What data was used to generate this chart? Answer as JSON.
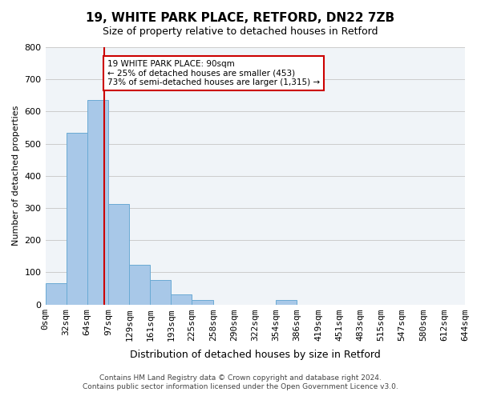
{
  "title": "19, WHITE PARK PLACE, RETFORD, DN22 7ZB",
  "subtitle": "Size of property relative to detached houses in Retford",
  "xlabel": "Distribution of detached houses by size in Retford",
  "ylabel": "Number of detached properties",
  "bar_edges": [
    0,
    32,
    64,
    97,
    129,
    161,
    193,
    225,
    258,
    290,
    322,
    354,
    386,
    419,
    451,
    483,
    515,
    547,
    580,
    612,
    644
  ],
  "bar_heights": [
    65,
    535,
    635,
    313,
    122,
    77,
    32,
    13,
    0,
    0,
    0,
    13,
    0,
    0,
    0,
    0,
    0,
    0,
    0,
    0
  ],
  "bar_color": "#a8c8e8",
  "bar_edge_color": "#6aaad4",
  "property_value": 90,
  "vline_color": "#cc0000",
  "ylim": [
    0,
    800
  ],
  "yticks": [
    0,
    100,
    200,
    300,
    400,
    500,
    600,
    700,
    800
  ],
  "tick_labels": [
    "0sqm",
    "32sqm",
    "64sqm",
    "97sqm",
    "129sqm",
    "161sqm",
    "193sqm",
    "225sqm",
    "258sqm",
    "290sqm",
    "322sqm",
    "354sqm",
    "386sqm",
    "419sqm",
    "451sqm",
    "483sqm",
    "515sqm",
    "547sqm",
    "580sqm",
    "612sqm",
    "644sqm"
  ],
  "annotation_text": "19 WHITE PARK PLACE: 90sqm\n← 25% of detached houses are smaller (453)\n73% of semi-detached houses are larger (1,315) →",
  "annotation_box_color": "#ffffff",
  "annotation_box_edge": "#cc0000",
  "footer_line1": "Contains HM Land Registry data © Crown copyright and database right 2024.",
  "footer_line2": "Contains public sector information licensed under the Open Government Licence v3.0.",
  "background_color": "#f0f4f8"
}
